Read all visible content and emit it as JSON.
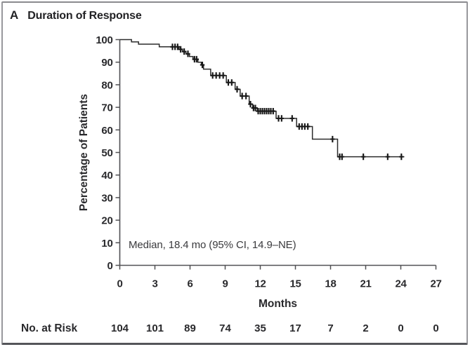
{
  "figure": {
    "panel_label": "A",
    "title": "Duration of Response"
  },
  "chart_data": {
    "type": "line",
    "subtype": "kaplan-meier-step-curve",
    "title": "A Duration of Response",
    "xlabel": "Months",
    "ylabel": "Percentage of Patients",
    "xlim": [
      0,
      27
    ],
    "ylim": [
      0,
      100
    ],
    "xticks": [
      0,
      3,
      6,
      9,
      12,
      15,
      18,
      21,
      24,
      27
    ],
    "yticks": [
      0,
      10,
      20,
      30,
      40,
      50,
      60,
      70,
      80,
      90,
      100
    ],
    "grid": false,
    "legend": false,
    "annotation": "Median, 18.4 mo (95% CI, 14.9–NE)",
    "series": [
      {
        "name": "Duration of response",
        "steps": [
          [
            0,
            100
          ],
          [
            1.0,
            99
          ],
          [
            1.6,
            98
          ],
          [
            3.37,
            96.8
          ],
          [
            5.05,
            95.7
          ],
          [
            5.35,
            94.7
          ],
          [
            5.65,
            93.7
          ],
          [
            5.95,
            92.5
          ],
          [
            6.25,
            91.3
          ],
          [
            6.67,
            90.0
          ],
          [
            6.97,
            88.8
          ],
          [
            7.15,
            86.9
          ],
          [
            7.76,
            84.1
          ],
          [
            9.1,
            81.0
          ],
          [
            9.85,
            78.0
          ],
          [
            10.28,
            75.0
          ],
          [
            11.05,
            71.4
          ],
          [
            11.35,
            69.7
          ],
          [
            11.75,
            68.3
          ],
          [
            13.35,
            65.1
          ],
          [
            15.1,
            61.5
          ],
          [
            16.45,
            55.9
          ],
          [
            18.6,
            48.1
          ]
        ],
        "end_month": 24.3,
        "censors": [
          [
            4.5,
            96.8
          ],
          [
            4.72,
            96.8
          ],
          [
            4.94,
            96.8
          ],
          [
            5.2,
            95.7
          ],
          [
            5.5,
            94.7
          ],
          [
            5.82,
            93.7
          ],
          [
            6.38,
            91.3
          ],
          [
            6.56,
            91.3
          ],
          [
            7.05,
            88.8
          ],
          [
            7.93,
            84.1
          ],
          [
            8.23,
            84.1
          ],
          [
            8.53,
            84.1
          ],
          [
            8.83,
            84.1
          ],
          [
            9.27,
            81.0
          ],
          [
            9.56,
            81.0
          ],
          [
            10.02,
            78.0
          ],
          [
            10.45,
            75.0
          ],
          [
            10.78,
            75.0
          ],
          [
            11.16,
            71.4
          ],
          [
            11.42,
            69.7
          ],
          [
            11.58,
            69.7
          ],
          [
            11.82,
            68.3
          ],
          [
            12.0,
            68.3
          ],
          [
            12.18,
            68.3
          ],
          [
            12.36,
            68.3
          ],
          [
            12.54,
            68.3
          ],
          [
            12.72,
            68.3
          ],
          [
            12.9,
            68.3
          ],
          [
            13.1,
            68.3
          ],
          [
            13.56,
            65.1
          ],
          [
            13.82,
            65.1
          ],
          [
            14.72,
            65.1
          ],
          [
            15.32,
            61.5
          ],
          [
            15.56,
            61.5
          ],
          [
            15.8,
            61.5
          ],
          [
            16.06,
            61.5
          ],
          [
            18.17,
            55.9
          ],
          [
            18.78,
            48.1
          ],
          [
            18.98,
            48.1
          ],
          [
            20.8,
            48.1
          ],
          [
            22.88,
            48.1
          ],
          [
            24.05,
            48.1
          ]
        ]
      }
    ],
    "no_at_risk": {
      "label": "No. at Risk",
      "months": [
        0,
        3,
        6,
        9,
        12,
        15,
        18,
        21,
        24,
        27
      ],
      "values": [
        104,
        101,
        89,
        74,
        35,
        17,
        7,
        2,
        0,
        0
      ]
    },
    "colors": {
      "line": "#2b2b2b",
      "censor": "#161616",
      "axis": "#515154",
      "text": "#29292c",
      "frame": "#98989c"
    }
  }
}
